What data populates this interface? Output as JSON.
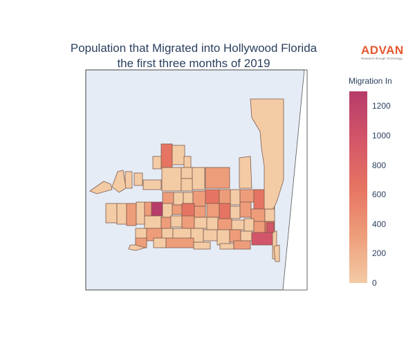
{
  "title": {
    "line1": "Population that Migrated into Hollywood Florida",
    "line2": "the first three months of 2019"
  },
  "logo": {
    "word": "ADVAN",
    "tagline": "Research through Technology"
  },
  "colorbar": {
    "title": "Migration In",
    "min": 0,
    "max": 1300,
    "ticks": [
      "0",
      "200",
      "400",
      "600",
      "800",
      "1000",
      "1200"
    ],
    "tick_values": [
      0,
      200,
      400,
      600,
      800,
      1000,
      1200
    ],
    "colors": [
      "#f3cba5",
      "#ee9d7a",
      "#e67462",
      "#d35569",
      "#b63c6a"
    ]
  },
  "map": {
    "type": "choropleth",
    "region": "Hollywood, Florida",
    "land_color": "#e5ecf6",
    "ocean_color": "#ffffff"
  }
}
